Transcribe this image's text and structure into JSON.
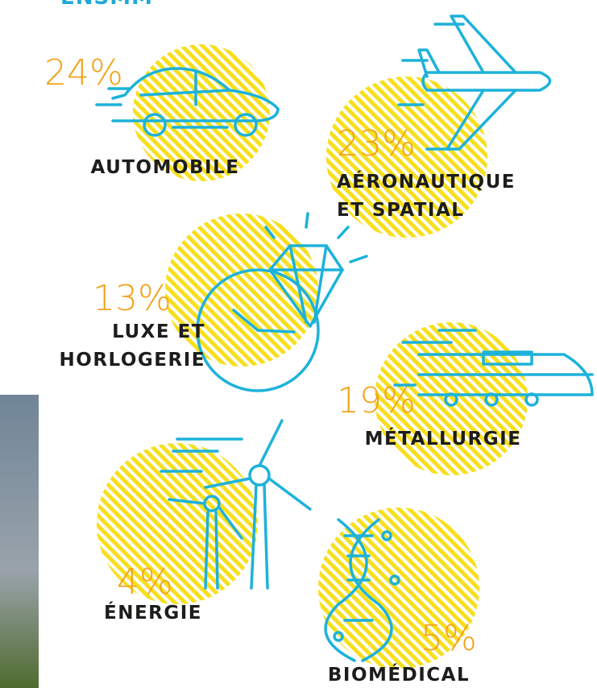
{
  "header": {
    "title": "ENSMM"
  },
  "sectors": [
    {
      "percent": "24%",
      "label": [
        "AUTOMOBILE"
      ]
    },
    {
      "percent": "23%",
      "label": [
        "AÉRONAUTIQUE",
        "ET SPATIAL"
      ]
    },
    {
      "percent": "13%",
      "label": [
        "LUXE ET",
        "HORLOGERIE"
      ]
    },
    {
      "percent": "19%",
      "label": [
        "MÉTALLURGIE"
      ]
    },
    {
      "percent": "4%",
      "label": [
        "ÉNERGIE"
      ]
    },
    {
      "percent": "5%",
      "label": [
        "BIOMÉDICAL"
      ]
    }
  ]
}
